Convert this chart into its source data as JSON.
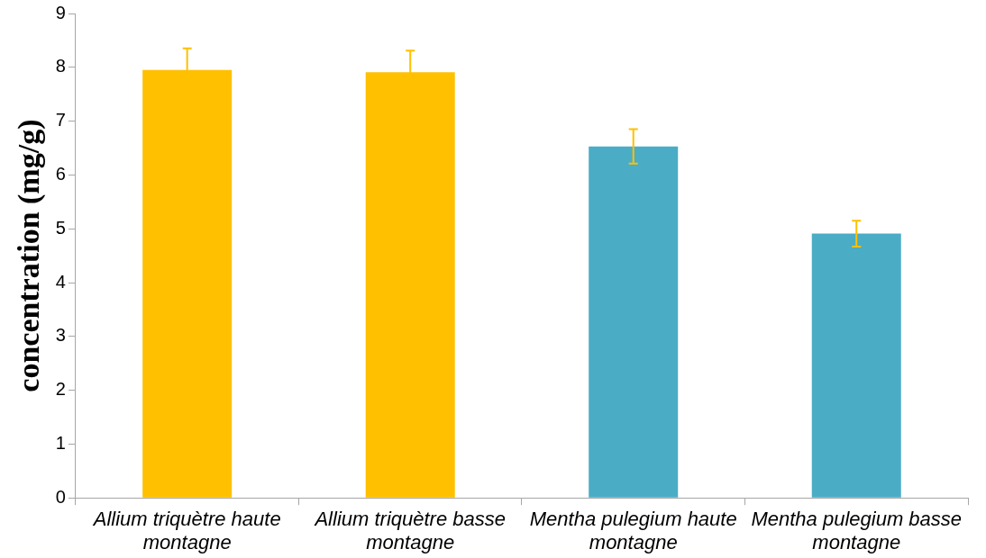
{
  "chart_data": {
    "type": "bar",
    "ylabel": "concentration (mg/g)",
    "categories": [
      "Allium triquètre haute montagne",
      "Allium triquètre basse montagne",
      "Mentha pulegium haute montagne",
      "Mentha pulegium basse montagne"
    ],
    "values": [
      7.95,
      7.91,
      6.53,
      4.91
    ],
    "colors": [
      "#ffc000",
      "#ffc000",
      "#4bacc6",
      "#4bacc6"
    ],
    "errors": [
      0.4,
      0.4,
      0.32,
      0.24
    ],
    "ylim": [
      0,
      9
    ],
    "yticks": [
      0,
      1,
      2,
      3,
      4,
      5,
      6,
      7,
      8,
      9
    ],
    "grid": false,
    "legend": false
  }
}
